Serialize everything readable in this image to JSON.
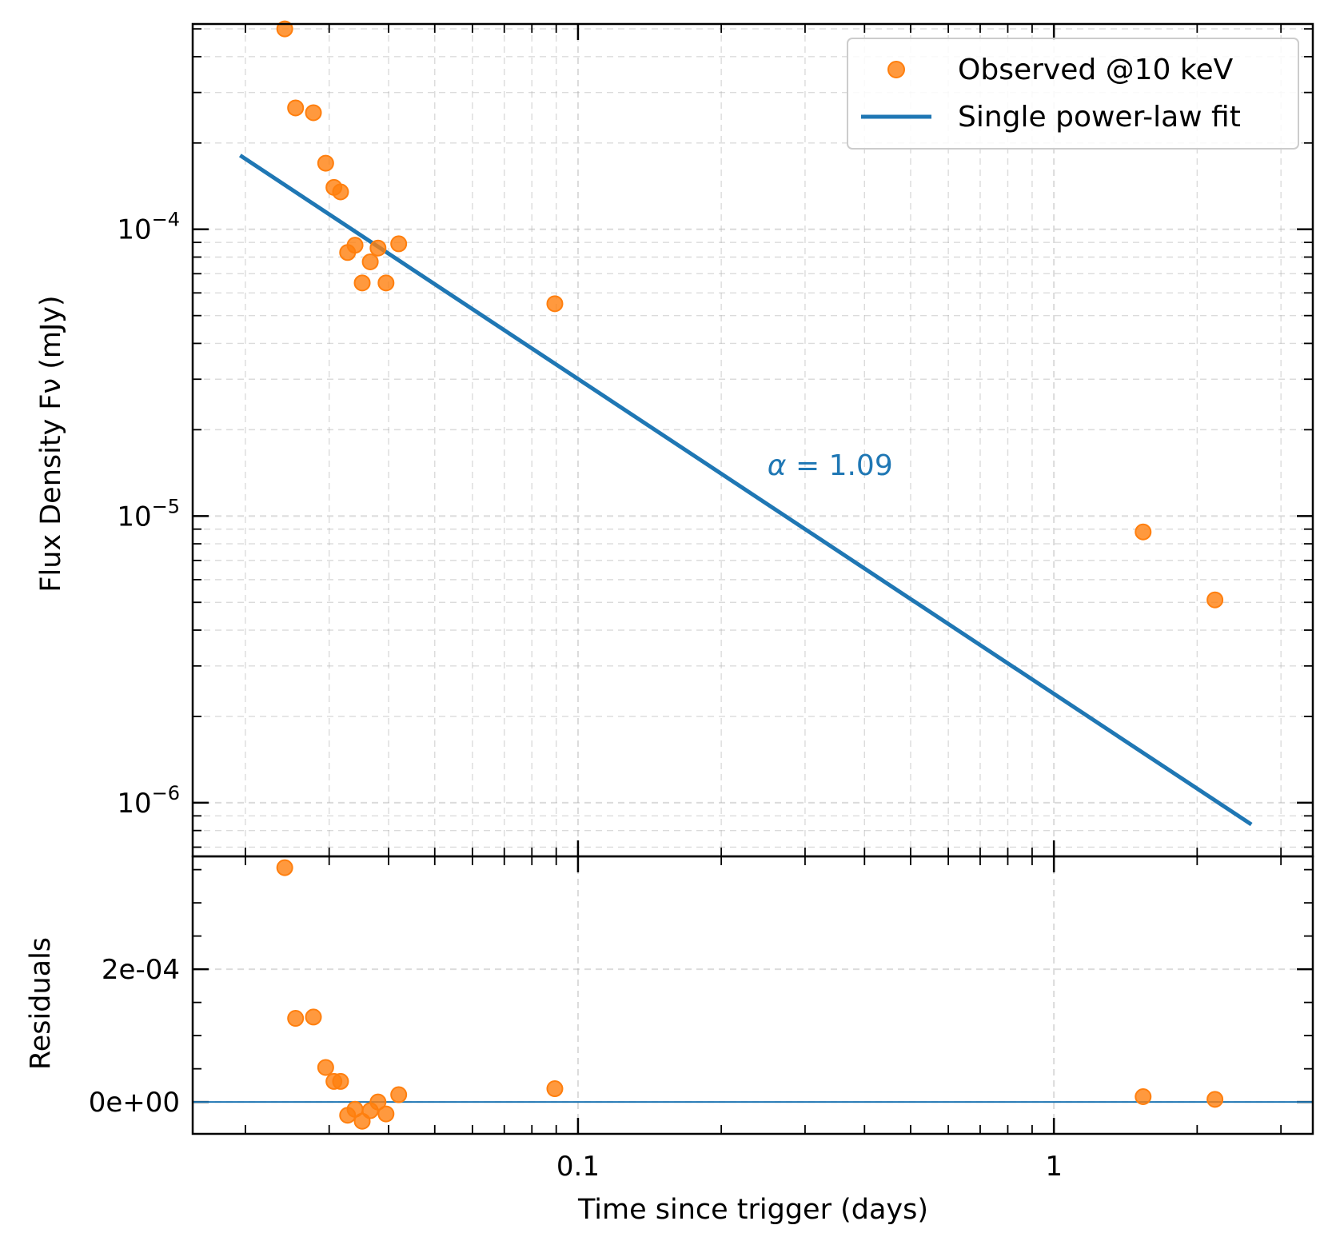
{
  "chart_data": {
    "type": "scatter",
    "xscale": "log",
    "xlabel": "Time since trigger (days)",
    "xlim": [
      0.0155,
      3.5
    ],
    "x_ticks": [
      {
        "value": 0.1,
        "label": "0.1"
      },
      {
        "value": 1,
        "label": "1"
      }
    ],
    "top_panel": {
      "yscale": "log",
      "ylabel": "Flux Density Fν (mJy)",
      "ylim": [
        6.5e-07,
        0.00052
      ],
      "y_ticks": [
        {
          "value": 0.0001,
          "mantissa": "10",
          "exp": "−4"
        },
        {
          "value": 1e-05,
          "mantissa": "10",
          "exp": "−5"
        },
        {
          "value": 1e-06,
          "mantissa": "10",
          "exp": "−6"
        }
      ],
      "grid": true,
      "legend": {
        "placement": "top-right",
        "entries": [
          {
            "label": "Observed @10 keV",
            "kind": "marker",
            "color": "#ff7f0e"
          },
          {
            "label": "Single power-law fit",
            "kind": "line",
            "color": "#1f77b4"
          }
        ]
      },
      "series": [
        {
          "name": "Observed @10 keV",
          "kind": "scatter",
          "color": "#ff7f0e",
          "x": [
            0.0242,
            0.0255,
            0.0278,
            0.0295,
            0.0307,
            0.0317,
            0.0328,
            0.034,
            0.0352,
            0.0366,
            0.038,
            0.0395,
            0.042,
            0.0894,
            1.54,
            2.18
          ],
          "y": [
            0.0005,
            0.000265,
            0.000255,
            0.00017,
            0.00014,
            0.000135,
            8.3e-05,
            8.8e-05,
            6.5e-05,
            7.7e-05,
            8.6e-05,
            6.5e-05,
            8.9e-05,
            5.5e-05,
            8.8e-06,
            5.1e-06
          ]
        },
        {
          "name": "Single power-law fit",
          "kind": "line",
          "color": "#1f77b4",
          "x": [
            0.0195,
            2.6
          ],
          "y": [
            0.000181,
            8.4e-07
          ]
        }
      ],
      "annotation": {
        "symbol": "α",
        "text": " = 1.09",
        "color": "#1f77b4",
        "x": 0.25,
        "y": 1.5e-05
      }
    },
    "bottom_panel": {
      "yscale": "linear",
      "ylabel": "Residuals",
      "ylim": [
        -4.8e-05,
        0.00037
      ],
      "y_ticks": [
        {
          "value": 0.0002,
          "label": "2e-04"
        },
        {
          "value": 0,
          "label": "0e+00"
        }
      ],
      "zero_line_color": "#1f77b4",
      "residuals": {
        "color": "#ff7f0e",
        "x": [
          0.0242,
          0.0255,
          0.0278,
          0.0295,
          0.0307,
          0.0317,
          0.0328,
          0.034,
          0.0352,
          0.0366,
          0.038,
          0.0395,
          0.042,
          0.0894,
          1.54,
          2.18
        ],
        "y": [
          0.000353,
          0.000126,
          0.000128,
          5.2e-05,
          3.1e-05,
          3.1e-05,
          -2e-05,
          -1.1e-05,
          -2.9e-05,
          -1.3e-05,
          0.0,
          -1.8e-05,
          1.1e-05,
          2e-05,
          8e-06,
          4e-06
        ]
      }
    }
  }
}
